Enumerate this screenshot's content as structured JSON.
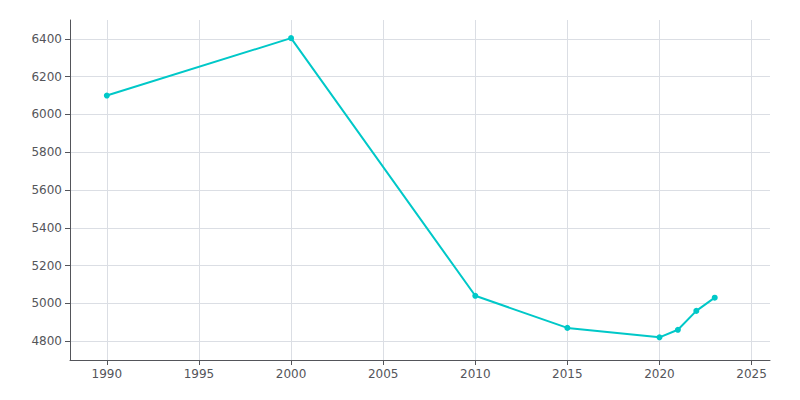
{
  "chart_data": {
    "type": "line",
    "x": [
      1990,
      2000,
      2010,
      2015,
      2020,
      2021,
      2022,
      2023
    ],
    "values": [
      6100,
      6404,
      5040,
      4870,
      4820,
      4860,
      4960,
      5030
    ],
    "color": "#00C8C8",
    "marker": "circle",
    "xlim": [
      1988,
      2026
    ],
    "ylim": [
      4700,
      6500
    ],
    "xticks": [
      1990,
      1995,
      2000,
      2005,
      2010,
      2015,
      2020,
      2025
    ],
    "yticks": [
      4800,
      5000,
      5200,
      5400,
      5600,
      5800,
      6000,
      6200,
      6400
    ],
    "grid": true
  }
}
